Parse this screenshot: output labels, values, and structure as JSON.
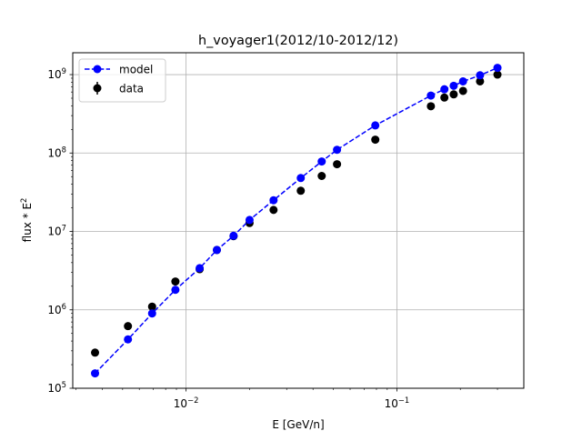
{
  "chart_data": {
    "type": "scatter",
    "title": "h_voyager1(2012/10-2012/12)",
    "xlabel": "E [GeV/n]",
    "ylabel_base": "flux * E",
    "ylabel_exponent": "2",
    "xscale": "log",
    "yscale": "log",
    "xlim": [
      0.0029,
      0.4
    ],
    "ylim": [
      100000,
      1900000000
    ],
    "grid": true,
    "legend_position": "upper-left",
    "x_ticks": [
      {
        "value": 0.01,
        "base": "10",
        "exp": "−2"
      },
      {
        "value": 0.1,
        "base": "10",
        "exp": "−1"
      }
    ],
    "y_ticks": [
      {
        "value": 100000,
        "base": "10",
        "exp": "5"
      },
      {
        "value": 1000000,
        "base": "10",
        "exp": "6"
      },
      {
        "value": 10000000,
        "base": "10",
        "exp": "7"
      },
      {
        "value": 100000000,
        "base": "10",
        "exp": "8"
      },
      {
        "value": 1000000000,
        "base": "10",
        "exp": "9"
      }
    ],
    "series": [
      {
        "name": "model",
        "style": "dashed-line-with-markers",
        "color": "#0000ff",
        "points": [
          [
            0.0037,
            155000
          ],
          [
            0.0053,
            420000
          ],
          [
            0.0069,
            900000
          ],
          [
            0.0089,
            1800000
          ],
          [
            0.0116,
            3400000
          ],
          [
            0.014,
            5800000
          ],
          [
            0.0168,
            8800000
          ],
          [
            0.02,
            14000000
          ],
          [
            0.026,
            25000000
          ],
          [
            0.035,
            48000000
          ],
          [
            0.044,
            78000000
          ],
          [
            0.052,
            110000000
          ],
          [
            0.079,
            225000000
          ],
          [
            0.145,
            540000000
          ],
          [
            0.168,
            650000000
          ],
          [
            0.186,
            720000000
          ],
          [
            0.206,
            820000000
          ],
          [
            0.248,
            980000000
          ],
          [
            0.3,
            1220000000
          ]
        ]
      },
      {
        "name": "data",
        "style": "markers-with-errorbars",
        "color": "#000000",
        "points": [
          [
            0.0037,
            285000
          ],
          [
            0.0053,
            620000
          ],
          [
            0.0069,
            1100000
          ],
          [
            0.0089,
            2300000
          ],
          [
            0.0116,
            3300000
          ],
          [
            0.014,
            5800000
          ],
          [
            0.0168,
            8700000
          ],
          [
            0.02,
            12800000
          ],
          [
            0.026,
            18800000
          ],
          [
            0.035,
            33000000
          ],
          [
            0.044,
            51000000
          ],
          [
            0.052,
            72000000
          ],
          [
            0.079,
            148000000
          ],
          [
            0.145,
            395000000
          ],
          [
            0.168,
            510000000
          ],
          [
            0.186,
            560000000
          ],
          [
            0.206,
            620000000
          ],
          [
            0.248,
            820000000
          ],
          [
            0.3,
            1000000000
          ]
        ]
      }
    ]
  }
}
